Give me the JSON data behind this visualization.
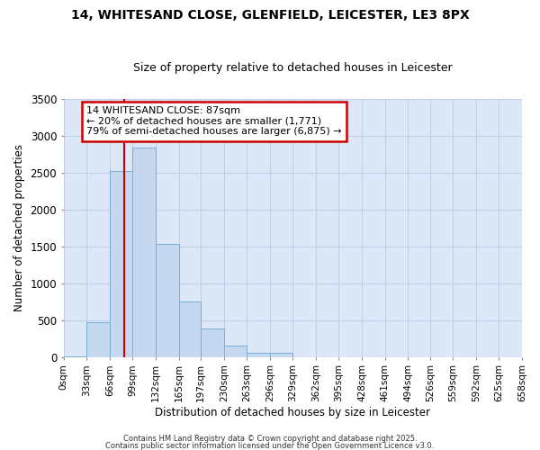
{
  "title1": "14, WHITESAND CLOSE, GLENFIELD, LEICESTER, LE3 8PX",
  "title2": "Size of property relative to detached houses in Leicester",
  "xlabel": "Distribution of detached houses by size in Leicester",
  "ylabel": "Number of detached properties",
  "bin_edges": [
    0,
    33,
    66,
    99,
    132,
    165,
    197,
    230,
    263,
    296,
    329,
    362,
    395,
    428,
    461,
    494,
    526,
    559,
    592,
    625,
    658
  ],
  "bin_labels": [
    "0sqm",
    "33sqm",
    "66sqm",
    "99sqm",
    "132sqm",
    "165sqm",
    "197sqm",
    "230sqm",
    "263sqm",
    "296sqm",
    "329sqm",
    "362sqm",
    "395sqm",
    "428sqm",
    "461sqm",
    "494sqm",
    "526sqm",
    "559sqm",
    "592sqm",
    "625sqm",
    "658sqm"
  ],
  "bar_heights": [
    10,
    475,
    2520,
    2840,
    1530,
    750,
    390,
    150,
    60,
    60,
    0,
    0,
    0,
    0,
    0,
    0,
    0,
    0,
    0,
    0
  ],
  "bar_color": "#c5d8f0",
  "bar_edge_color": "#7aafd4",
  "plot_bg_color": "#dce8f8",
  "fig_bg_color": "#ffffff",
  "grid_color": "#c0d0e8",
  "vline_x": 87,
  "vline_color": "#cc0000",
  "annotation_text": "14 WHITESAND CLOSE: 87sqm\n← 20% of detached houses are smaller (1,771)\n79% of semi-detached houses are larger (6,875) →",
  "annotation_box_color": "#ffffff",
  "annotation_box_edge": "#cc0000",
  "ylim": [
    0,
    3500
  ],
  "yticks": [
    0,
    500,
    1000,
    1500,
    2000,
    2500,
    3000,
    3500
  ],
  "footnote1": "Contains HM Land Registry data © Crown copyright and database right 2025.",
  "footnote2": "Contains public sector information licensed under the Open Government Licence v3.0."
}
